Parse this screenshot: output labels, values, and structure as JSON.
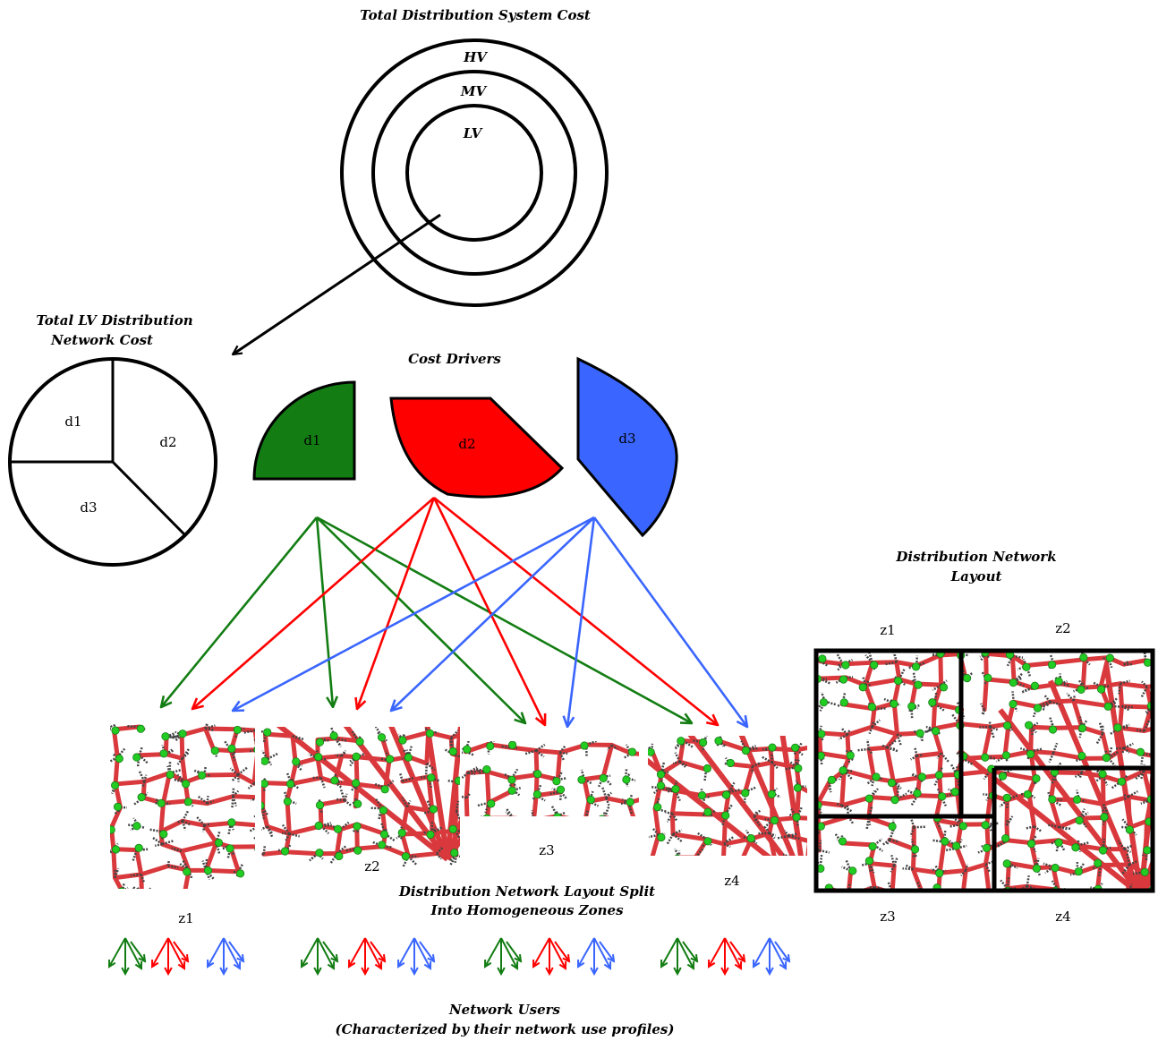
{
  "titles": {
    "total_cost": "Total Distribution System Cost",
    "lv_cost_line1": "Total LV Distribution",
    "lv_cost_line2": "Network Cost",
    "cost_drivers": "Cost Drivers",
    "layout_line1": "Distribution Network",
    "layout_line2": "Layout",
    "split_line1": "Distribution Network Layout Split",
    "split_line2": "Into Homogeneous Zones",
    "users_line1": "Network Users",
    "users_line2": "(Characterized by their network use profiles)"
  },
  "voltage_levels": [
    "HV",
    "MV",
    "LV"
  ],
  "lv_pie_segments": [
    "d1",
    "d2",
    "d3"
  ],
  "cost_drivers": [
    {
      "label": "d1",
      "color": "#137d13"
    },
    {
      "label": "d2",
      "color": "#ff0000"
    },
    {
      "label": "d3",
      "color": "#3a66ff"
    }
  ],
  "zones": [
    "z1",
    "z2",
    "z3",
    "z4"
  ],
  "layout_zones": [
    "z1",
    "z2",
    "z3",
    "z4"
  ],
  "colors": {
    "network_line": "#d9393c",
    "node": "#22cc22",
    "cable": "#444444"
  }
}
